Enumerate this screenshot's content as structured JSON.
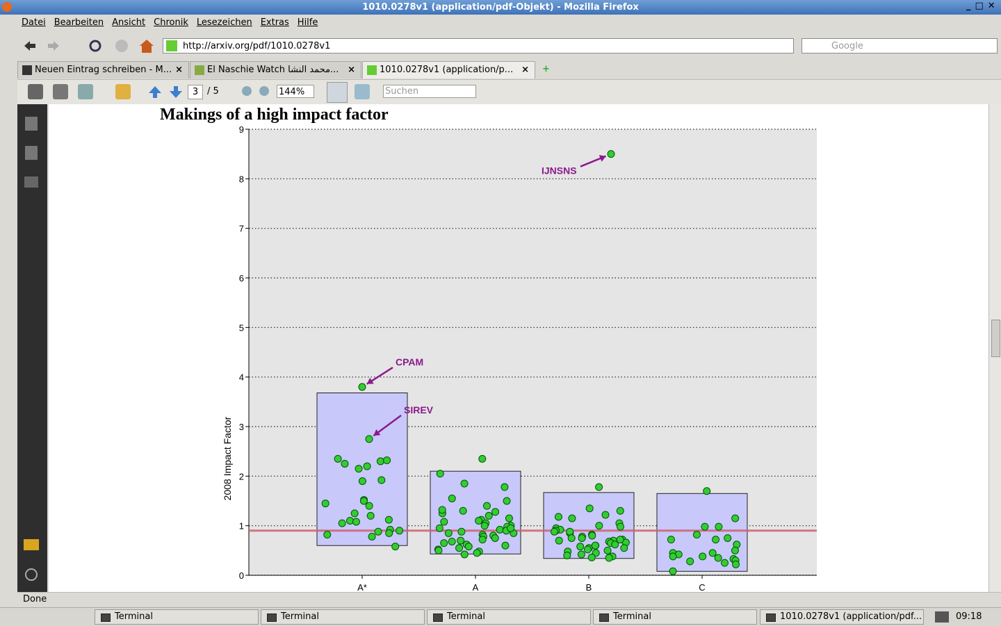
{
  "window": {
    "title": "1010.0278v1 (application/pdf-Objekt) - Mozilla Firefox"
  },
  "menu": [
    "Datei",
    "Bearbeiten",
    "Ansicht",
    "Chronik",
    "Lesezeichen",
    "Extras",
    "Hilfe"
  ],
  "address": {
    "url": "http://arxiv.org/pdf/1010.0278v1",
    "search_placeholder": "Google"
  },
  "tabs": [
    "Neuen Eintrag schreiben - M...",
    "El Naschie Watch محمد النشا...",
    "1010.0278v1 (application/p..."
  ],
  "pdf_toolbar": {
    "page": "3",
    "pages": "/ 5",
    "zoom": "144%",
    "search_placeholder": "Suchen"
  },
  "chart": {
    "type": "box-scatter",
    "title": "Makings of a high impact factor",
    "y_label": "2008 Impact Factor",
    "categories": [
      "A*",
      "A",
      "B",
      "C"
    ],
    "ylim": [
      0,
      9
    ],
    "yticks": [
      0,
      1,
      2,
      3,
      4,
      5,
      6,
      7,
      8,
      9
    ],
    "grid": true,
    "reference_line": 0.9,
    "boxes": [
      {
        "low": 0.6,
        "high": 3.68
      },
      {
        "low": 0.43,
        "high": 2.1
      },
      {
        "low": 0.34,
        "high": 1.67
      },
      {
        "low": 0.08,
        "high": 1.65
      }
    ],
    "points": [
      [
        2.35,
        2.3,
        2.2,
        2.15,
        2.25,
        2.32,
        1.92,
        1.9,
        1.52,
        1.5,
        1.45,
        1.4,
        1.2,
        1.25,
        1.12,
        1.1,
        1.08,
        1.05,
        0.9,
        0.88,
        0.92,
        0.85,
        0.82,
        0.78,
        0.58
      ],
      [
        2.35,
        2.05,
        1.85,
        1.78,
        1.55,
        1.5,
        1.4,
        1.28,
        1.25,
        1.2,
        1.15,
        1.12,
        1.1,
        1.05,
        1.0,
        1.0,
        0.98,
        0.95,
        0.92,
        0.9,
        0.88,
        0.85,
        0.85,
        0.82,
        0.8,
        0.78,
        0.75,
        0.72,
        0.7,
        0.68,
        0.65,
        0.62,
        0.6,
        0.58,
        0.55,
        0.52,
        0.5,
        0.48,
        0.45,
        0.42,
        1.3,
        1.32,
        1.08,
        0.95
      ],
      [
        1.78,
        1.35,
        1.3,
        1.22,
        1.18,
        1.15,
        1.05,
        1.0,
        0.98,
        0.95,
        0.92,
        0.9,
        0.88,
        0.85,
        0.82,
        0.8,
        0.78,
        0.75,
        0.72,
        0.7,
        0.7,
        0.68,
        0.66,
        0.65,
        0.62,
        0.6,
        0.58,
        0.55,
        0.52,
        0.5,
        0.48,
        0.45,
        0.42,
        0.4,
        0.38,
        0.36,
        0.35,
        0.88,
        0.75,
        0.6,
        0.55,
        0.72
      ],
      [
        1.7,
        1.15,
        0.98,
        0.98,
        0.82,
        0.75,
        0.72,
        0.72,
        0.62,
        0.5,
        0.45,
        0.45,
        0.42,
        0.38,
        0.35,
        0.33,
        0.3,
        0.28,
        0.25,
        0.22,
        0.08,
        0.38
      ]
    ],
    "annotations": [
      {
        "label": "IJNSNS",
        "category": "B",
        "value": 8.5
      },
      {
        "label": "CPAM",
        "category": "A*",
        "value": 3.8
      },
      {
        "label": "SIREV",
        "category": "A*",
        "value": 2.75
      }
    ]
  },
  "status": "Done",
  "taskbar": {
    "items": [
      "Terminal",
      "Terminal",
      "Terminal",
      "Terminal",
      "1010.0278v1 (application/pdf..."
    ],
    "clock": "09:18"
  }
}
